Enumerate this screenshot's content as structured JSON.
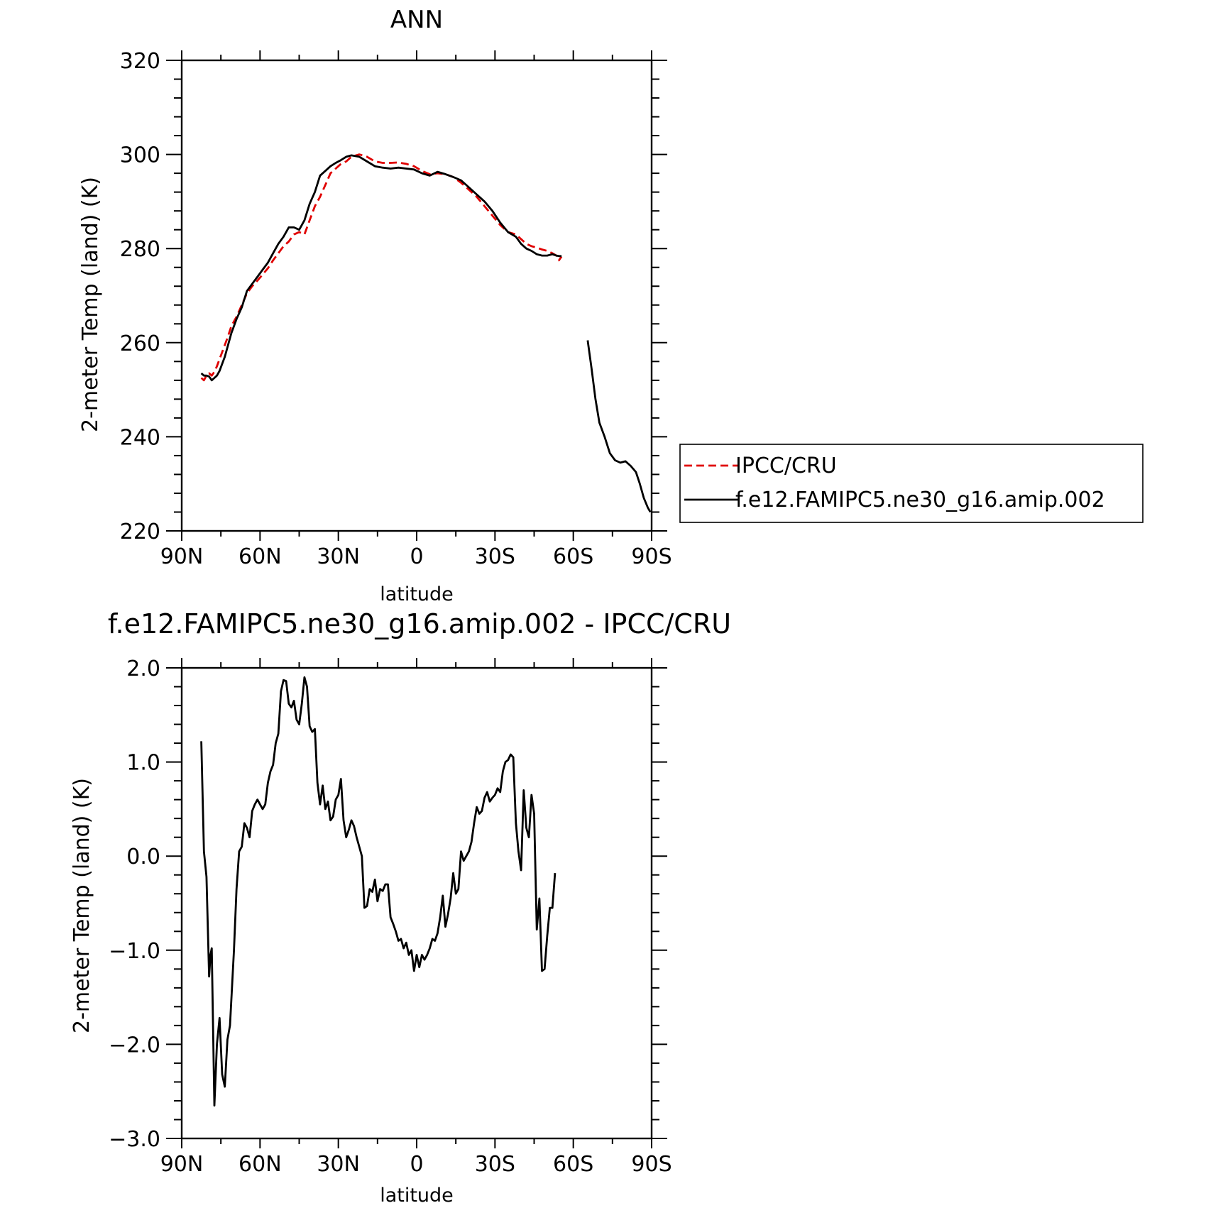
{
  "colors": {
    "model": "#000000",
    "obs": "#e00000",
    "axis": "#000000"
  },
  "legend": {
    "placement": "right of top panel",
    "items": [
      {
        "label": "IPCC/CRU",
        "color": "#e00000",
        "dash": "dashed"
      },
      {
        "label": "f.e12.FAMIPC5.ne30_g16.amip.002",
        "color": "#000000",
        "dash": "solid"
      }
    ]
  },
  "chart_data": [
    {
      "type": "line",
      "title": "ANN",
      "xlabel": "latitude",
      "ylabel": "2-meter Temp (land) (K)",
      "xlim": [
        90,
        -90
      ],
      "ylim": [
        220,
        320
      ],
      "xticks": [
        90,
        60,
        30,
        0,
        -30,
        -60,
        -90
      ],
      "xtick_labels": [
        "90N",
        "60N",
        "30N",
        "0",
        "30S",
        "60S",
        "90S"
      ],
      "yticks": [
        220,
        240,
        260,
        280,
        300,
        320
      ],
      "ytick_labels": [
        "220",
        "240",
        "260",
        "280",
        "300",
        "320"
      ],
      "grid": false,
      "series": [
        {
          "name": "IPCC/CRU",
          "style": "dashed",
          "color": "#e00000",
          "x": [
            82.5,
            81.5,
            80.5,
            79.5,
            78.5,
            77.5,
            76.5,
            75.5,
            74.5,
            73.5,
            72.5,
            71,
            69,
            67,
            65,
            63,
            61,
            59,
            57,
            55,
            53,
            51,
            49,
            47,
            45,
            43,
            41,
            39,
            37,
            35,
            33,
            31,
            29,
            27,
            25,
            22,
            19,
            16,
            13,
            10,
            7,
            4,
            1,
            -2,
            -5,
            -8,
            -11,
            -14,
            -17,
            -20,
            -23,
            -26,
            -29,
            -32,
            -35,
            -38,
            -40,
            -42,
            -44,
            -46,
            -48,
            -50,
            -52,
            -53.5,
            -54.5,
            -55.5
          ],
          "y": [
            252.5,
            252.0,
            253.0,
            253.5,
            253.0,
            253.8,
            255.0,
            256.5,
            258.0,
            259.5,
            261.0,
            263.5,
            265.5,
            268.0,
            270.5,
            272.0,
            273.2,
            274.5,
            275.8,
            277.5,
            279.0,
            280.5,
            281.5,
            283.0,
            283.5,
            283.0,
            286.0,
            289.0,
            291.0,
            293.5,
            296.0,
            297.0,
            298.0,
            298.5,
            299.5,
            300.0,
            299.5,
            298.5,
            298.2,
            298.2,
            298.3,
            298.0,
            297.5,
            296.5,
            295.8,
            296.0,
            295.8,
            295.2,
            294.0,
            292.5,
            291.0,
            289.0,
            287.0,
            285.0,
            283.5,
            283.0,
            282.0,
            281.0,
            280.5,
            280.2,
            279.8,
            279.5,
            279.0,
            278.5,
            277.5,
            278.3
          ]
        },
        {
          "name": "f.e12.FAMIPC5.ne30_g16.amip.002",
          "style": "solid",
          "color": "#000000",
          "x": [
            82.5,
            81.5,
            80.5,
            79.5,
            78.5,
            77.5,
            76.5,
            75.5,
            74.5,
            73.5,
            72.5,
            71,
            69,
            67,
            65,
            63,
            61,
            59,
            57,
            55,
            53,
            51,
            49,
            47,
            45,
            43,
            41,
            39,
            37,
            35,
            33,
            31,
            29,
            27,
            25,
            22,
            19,
            16,
            13,
            10,
            7,
            4,
            1,
            -2,
            -5,
            -8,
            -11,
            -14,
            -17,
            -20,
            -23,
            -26,
            -29,
            -32,
            -35,
            -38,
            -40,
            -42,
            -44,
            -46,
            -48,
            -50,
            -52,
            -53.5,
            -54.5,
            -55.5
          ],
          "y": [
            253.5,
            253.0,
            253.0,
            252.8,
            252.0,
            252.5,
            253.0,
            254.0,
            255.5,
            257.0,
            259.0,
            262.0,
            265.0,
            267.5,
            271.0,
            272.5,
            274.0,
            275.5,
            277.0,
            279.0,
            281.0,
            282.5,
            284.5,
            284.5,
            284.0,
            286.0,
            289.5,
            292.0,
            295.5,
            296.5,
            297.5,
            298.2,
            298.8,
            299.5,
            299.8,
            299.5,
            298.5,
            297.5,
            297.2,
            297.0,
            297.2,
            297.0,
            296.8,
            296.0,
            295.5,
            296.3,
            295.8,
            295.2,
            294.5,
            293.0,
            291.5,
            290.0,
            288.0,
            285.5,
            283.5,
            282.5,
            281.0,
            280.0,
            279.5,
            278.8,
            278.5,
            278.5,
            278.8,
            278.5,
            278.4,
            278.4
          ]
        },
        {
          "name": "f.e12.FAMIPC5.ne30_g16.amip.002",
          "style": "solid",
          "color": "#000000",
          "x": [
            -65.5,
            -67,
            -68.5,
            -70,
            -72,
            -74,
            -76,
            -78,
            -80,
            -82,
            -84,
            -85.5,
            -87,
            -88.5,
            -89.5
          ],
          "y": [
            260.5,
            254.5,
            248.0,
            243.0,
            240.0,
            236.5,
            235.0,
            234.5,
            234.8,
            233.8,
            232.5,
            230.0,
            227.0,
            225.0,
            224.0
          ]
        }
      ]
    },
    {
      "type": "line",
      "title": "f.e12.FAMIPC5.ne30_g16.amip.002 - IPCC/CRU",
      "xlabel": "latitude",
      "ylabel": "2-meter Temp (land) (K)",
      "xlim": [
        90,
        -90
      ],
      "ylim": [
        -3.0,
        2.0
      ],
      "xticks": [
        90,
        60,
        30,
        0,
        -30,
        -60,
        -90
      ],
      "xtick_labels": [
        "90N",
        "60N",
        "30N",
        "0",
        "30S",
        "60S",
        "90S"
      ],
      "yticks": [
        -3.0,
        -2.0,
        -1.0,
        0.0,
        1.0,
        2.0
      ],
      "ytick_labels": [
        "−3.0",
        "−2.0",
        "−1.0",
        "0.0",
        "1.0",
        "2.0"
      ],
      "grid": false,
      "series": [
        {
          "name": "f.e12.FAMIPC5.ne30_g16.amip.002 - IPCC/CRU",
          "style": "solid",
          "color": "#000000",
          "x": [
            82.5,
            81.5,
            80.5,
            79.5,
            79,
            78.5,
            77.5,
            76.5,
            75.5,
            74.5,
            73.5,
            72.5,
            71.5,
            70,
            69,
            68,
            67,
            66,
            65,
            64,
            63,
            62,
            61,
            60,
            59,
            58,
            57,
            56,
            55,
            54,
            53,
            52,
            51,
            50,
            49,
            48,
            47,
            46,
            45,
            44,
            43,
            42,
            41,
            40,
            39,
            38,
            37,
            36,
            35,
            34,
            33,
            32,
            31,
            30,
            29,
            28,
            27,
            26,
            25,
            24,
            23,
            22,
            21,
            20,
            19,
            18,
            17,
            16,
            15,
            14,
            13,
            12,
            11,
            10,
            9,
            8,
            7,
            6,
            5,
            4,
            3,
            2,
            1,
            0,
            -1,
            -2,
            -3,
            -4,
            -5,
            -6,
            -7,
            -8,
            -9,
            -10,
            -11,
            -12,
            -13,
            -14,
            -15,
            -16,
            -17,
            -18,
            -19,
            -20,
            -21,
            -22,
            -23,
            -24,
            -25,
            -26,
            -27,
            -28,
            -29,
            -30,
            -31,
            -32,
            -33,
            -34,
            -35,
            -36,
            -37,
            -38,
            -39,
            -40,
            -41,
            -42,
            -43,
            -44,
            -45,
            -46,
            -47,
            -48,
            -49,
            -50,
            -51,
            -52,
            -53
          ],
          "y": [
            1.22,
            0.05,
            -0.22,
            -1.28,
            -1.05,
            -0.98,
            -2.65,
            -2.0,
            -1.72,
            -2.32,
            -2.45,
            -1.95,
            -1.8,
            -1.0,
            -0.35,
            0.05,
            0.1,
            0.35,
            0.3,
            0.2,
            0.48,
            0.55,
            0.6,
            0.55,
            0.5,
            0.55,
            0.78,
            0.9,
            0.97,
            1.2,
            1.3,
            1.75,
            1.87,
            1.86,
            1.62,
            1.58,
            1.65,
            1.45,
            1.4,
            1.62,
            1.9,
            1.8,
            1.38,
            1.32,
            1.35,
            0.78,
            0.55,
            0.75,
            0.5,
            0.58,
            0.38,
            0.42,
            0.6,
            0.65,
            0.82,
            0.38,
            0.2,
            0.28,
            0.38,
            0.32,
            0.2,
            0.1,
            0.0,
            -0.55,
            -0.53,
            -0.35,
            -0.38,
            -0.25,
            -0.48,
            -0.35,
            -0.37,
            -0.3,
            -0.3,
            -0.65,
            -0.72,
            -0.8,
            -0.9,
            -0.88,
            -0.98,
            -0.92,
            -1.05,
            -1.0,
            -1.22,
            -1.05,
            -1.18,
            -1.05,
            -1.1,
            -1.05,
            -0.98,
            -0.88,
            -0.9,
            -0.82,
            -0.65,
            -0.42,
            -0.75,
            -0.62,
            -0.45,
            -0.18,
            -0.4,
            -0.35,
            0.05,
            -0.05,
            0.0,
            0.05,
            0.15,
            0.35,
            0.52,
            0.45,
            0.48,
            0.62,
            0.68,
            0.58,
            0.62,
            0.65,
            0.72,
            0.68,
            0.9,
            1.0,
            1.02,
            1.08,
            1.05,
            0.35,
            0.05,
            -0.15,
            0.7,
            0.3,
            0.2,
            0.65,
            0.45,
            -0.78,
            -0.45,
            -1.22,
            -1.2,
            -0.85,
            -0.55,
            -0.55,
            -0.18
          ]
        }
      ]
    }
  ]
}
